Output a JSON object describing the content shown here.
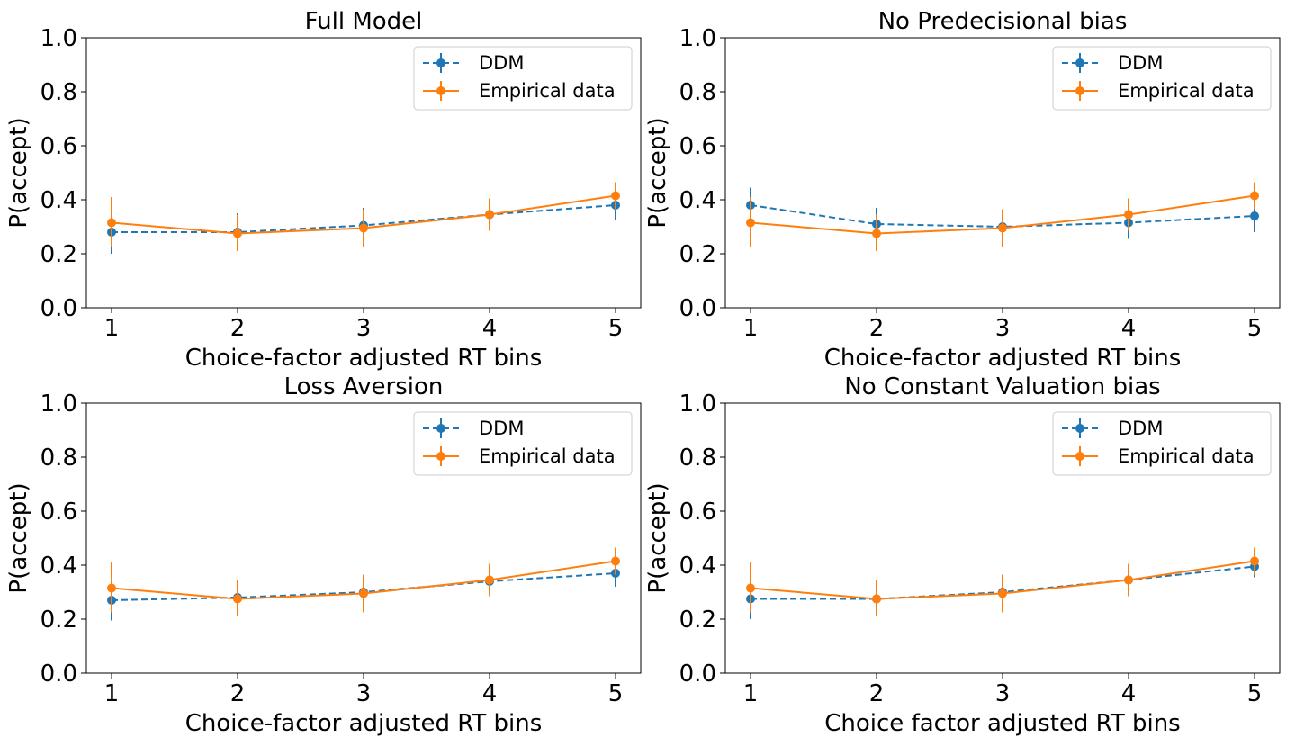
{
  "colors": {
    "ddm": "#1f77b4",
    "empirical": "#ff7f0e",
    "axes": "#000000",
    "legend_border": "#cccccc"
  },
  "chart_data": [
    {
      "type": "line",
      "title": "Full Model",
      "xlabel": "Choice-factor adjusted RT bins",
      "ylabel": "P(accept)",
      "xlim": [
        0.8,
        5.2
      ],
      "ylim": [
        0.0,
        1.0
      ],
      "xticks": [
        1,
        2,
        3,
        4,
        5
      ],
      "yticks": [
        0.0,
        0.2,
        0.4,
        0.6,
        0.8,
        1.0
      ],
      "ytick_labels": [
        "0.0",
        "0.2",
        "0.4",
        "0.6",
        "0.8",
        "1.0"
      ],
      "x": [
        1,
        2,
        3,
        4,
        5
      ],
      "legend": "top-right",
      "grid": false,
      "series": [
        {
          "name": "DDM",
          "style": "dashed",
          "values": [
            0.28,
            0.28,
            0.305,
            0.345,
            0.38
          ],
          "err_low": [
            0.2,
            0.21,
            0.24,
            0.29,
            0.325
          ],
          "err_high": [
            0.355,
            0.35,
            0.37,
            0.4,
            0.425
          ]
        },
        {
          "name": "Empirical data",
          "style": "solid",
          "values": [
            0.315,
            0.275,
            0.295,
            0.345,
            0.415
          ],
          "err_low": [
            0.225,
            0.21,
            0.225,
            0.285,
            0.365
          ],
          "err_high": [
            0.41,
            0.345,
            0.365,
            0.405,
            0.465
          ]
        }
      ]
    },
    {
      "type": "line",
      "title": "No Predecisional bias",
      "xlabel": "Choice-factor adjusted RT bins",
      "ylabel": "P(accept)",
      "xlim": [
        0.8,
        5.2
      ],
      "ylim": [
        0.0,
        1.0
      ],
      "xticks": [
        1,
        2,
        3,
        4,
        5
      ],
      "yticks": [
        0.0,
        0.2,
        0.4,
        0.6,
        0.8,
        1.0
      ],
      "ytick_labels": [
        "0.0",
        "0.2",
        "0.4",
        "0.6",
        "0.8",
        "1.0"
      ],
      "x": [
        1,
        2,
        3,
        4,
        5
      ],
      "legend": "top-right",
      "grid": false,
      "series": [
        {
          "name": "DDM",
          "style": "dashed",
          "values": [
            0.38,
            0.31,
            0.3,
            0.315,
            0.34
          ],
          "err_low": [
            0.32,
            0.25,
            0.24,
            0.255,
            0.28
          ],
          "err_high": [
            0.445,
            0.37,
            0.36,
            0.375,
            0.4
          ]
        },
        {
          "name": "Empirical data",
          "style": "solid",
          "values": [
            0.315,
            0.275,
            0.295,
            0.345,
            0.415
          ],
          "err_low": [
            0.225,
            0.21,
            0.225,
            0.285,
            0.365
          ],
          "err_high": [
            0.41,
            0.345,
            0.365,
            0.405,
            0.465
          ]
        }
      ]
    },
    {
      "type": "line",
      "title": "Loss Aversion",
      "xlabel": "Choice-factor adjusted RT bins",
      "ylabel": "P(accept)",
      "xlim": [
        0.8,
        5.2
      ],
      "ylim": [
        0.0,
        1.0
      ],
      "xticks": [
        1,
        2,
        3,
        4,
        5
      ],
      "yticks": [
        0.0,
        0.2,
        0.4,
        0.6,
        0.8,
        1.0
      ],
      "ytick_labels": [
        "0.0",
        "0.2",
        "0.4",
        "0.6",
        "0.8",
        "1.0"
      ],
      "x": [
        1,
        2,
        3,
        4,
        5
      ],
      "legend": "top-right",
      "grid": false,
      "series": [
        {
          "name": "DDM",
          "style": "dashed",
          "values": [
            0.27,
            0.28,
            0.3,
            0.34,
            0.37
          ],
          "err_low": [
            0.195,
            0.215,
            0.24,
            0.285,
            0.32
          ],
          "err_high": [
            0.345,
            0.345,
            0.36,
            0.4,
            0.42
          ]
        },
        {
          "name": "Empirical data",
          "style": "solid",
          "values": [
            0.315,
            0.275,
            0.295,
            0.345,
            0.415
          ],
          "err_low": [
            0.225,
            0.21,
            0.225,
            0.285,
            0.365
          ],
          "err_high": [
            0.41,
            0.345,
            0.365,
            0.405,
            0.465
          ]
        }
      ]
    },
    {
      "type": "line",
      "title": "No Constant Valuation bias",
      "xlabel": "Choice factor adjusted RT bins",
      "ylabel": "P(accept)",
      "xlim": [
        0.8,
        5.2
      ],
      "ylim": [
        0.0,
        1.0
      ],
      "xticks": [
        1,
        2,
        3,
        4,
        5
      ],
      "yticks": [
        0.0,
        0.2,
        0.4,
        0.6,
        0.8,
        1.0
      ],
      "ytick_labels": [
        "0.0",
        "0.2",
        "0.4",
        "0.6",
        "0.8",
        "1.0"
      ],
      "x": [
        1,
        2,
        3,
        4,
        5
      ],
      "legend": "top-right",
      "grid": false,
      "series": [
        {
          "name": "DDM",
          "style": "dashed",
          "values": [
            0.275,
            0.275,
            0.3,
            0.345,
            0.395
          ],
          "err_low": [
            0.2,
            0.215,
            0.245,
            0.29,
            0.355
          ],
          "err_high": [
            0.35,
            0.335,
            0.36,
            0.4,
            0.44
          ]
        },
        {
          "name": "Empirical data",
          "style": "solid",
          "values": [
            0.315,
            0.275,
            0.295,
            0.345,
            0.415
          ],
          "err_low": [
            0.225,
            0.21,
            0.225,
            0.285,
            0.365
          ],
          "err_high": [
            0.41,
            0.345,
            0.365,
            0.405,
            0.465
          ]
        }
      ]
    }
  ]
}
